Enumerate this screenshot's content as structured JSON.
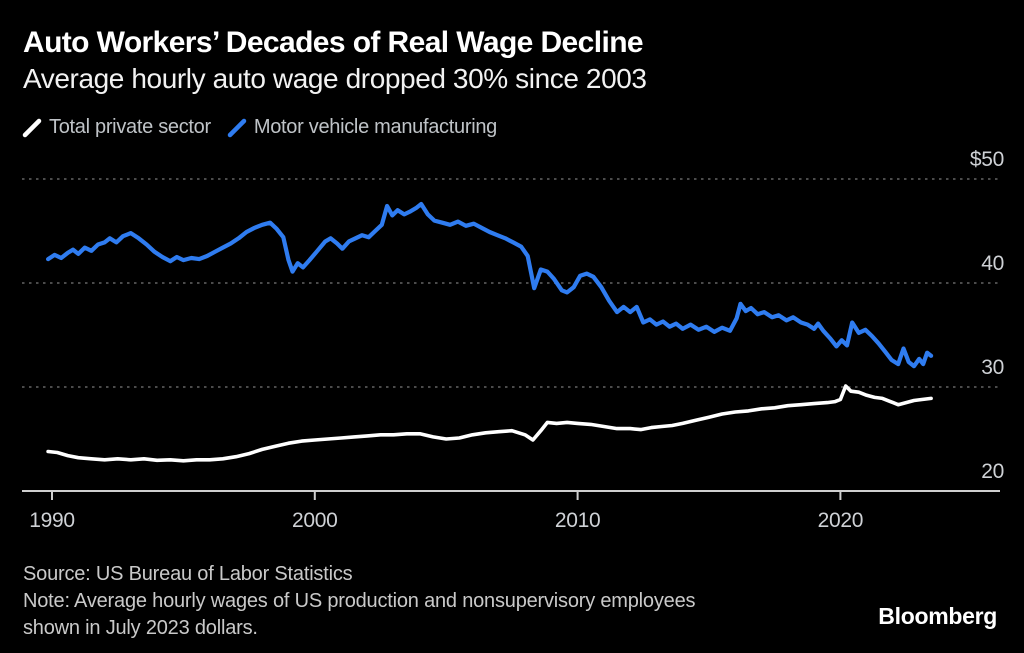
{
  "header": {
    "title": "Auto Workers’ Decades of Real Wage Decline",
    "subtitle": "Average hourly auto wage dropped 30% since 2003"
  },
  "legend": {
    "items": [
      {
        "label": "Total private sector",
        "color": "#ffffff"
      },
      {
        "label": "Motor vehicle manufacturing",
        "color": "#2f7cf0"
      }
    ]
  },
  "footer": {
    "source_line": "Source: US Bureau of Labor Statistics",
    "note_line1": "Note: Average hourly wages of US production and nonsupervisory employees",
    "note_line2": "shown in July 2023 dollars.",
    "logo": "Bloomberg"
  },
  "colors": {
    "background": "#000000",
    "grid": "#646464",
    "axis": "#cfcfcf",
    "axis_text": "#ced1d5",
    "series_white": "#ffffff",
    "series_blue": "#2f7cf0"
  },
  "chart_data": {
    "type": "line",
    "title": "Auto Workers’ Decades of Real Wage Decline",
    "subtitle": "Average hourly auto wage dropped 30% since 2003",
    "unit": "US dollars per hour, July 2023 dollars",
    "grid": "horizontal dotted",
    "legend_position": "top-left",
    "x_domain": [
      1988.9,
      2026.1
    ],
    "y_domain": [
      20,
      50
    ],
    "x_ticks": [
      {
        "label": "1990",
        "year": 1990
      },
      {
        "label": "2000",
        "year": 2000
      },
      {
        "label": "2010",
        "year": 2010
      },
      {
        "label": "2020",
        "year": 2020
      }
    ],
    "y_ticks": [
      {
        "label": "$50",
        "value": 50,
        "axis": false
      },
      {
        "label": "40",
        "value": 40,
        "axis": false
      },
      {
        "label": "30",
        "value": 30,
        "axis": false
      },
      {
        "label": "20",
        "value": 20,
        "axis": true
      }
    ],
    "series": [
      {
        "name": "Total private sector",
        "color": "#ffffff",
        "points": [
          [
            1989.85,
            23.8
          ],
          [
            1990.2,
            23.7
          ],
          [
            1990.6,
            23.4
          ],
          [
            1991.0,
            23.2
          ],
          [
            1991.5,
            23.1
          ],
          [
            1992.0,
            23.0
          ],
          [
            1992.5,
            23.1
          ],
          [
            1993.0,
            23.0
          ],
          [
            1993.5,
            23.1
          ],
          [
            1994.0,
            22.95
          ],
          [
            1994.5,
            23.0
          ],
          [
            1995.0,
            22.9
          ],
          [
            1995.5,
            23.0
          ],
          [
            1996.0,
            23.0
          ],
          [
            1996.5,
            23.1
          ],
          [
            1997.0,
            23.3
          ],
          [
            1997.5,
            23.6
          ],
          [
            1998.0,
            24.0
          ],
          [
            1998.5,
            24.3
          ],
          [
            1999.0,
            24.6
          ],
          [
            1999.5,
            24.8
          ],
          [
            2000.0,
            24.9
          ],
          [
            2000.5,
            25.0
          ],
          [
            2001.0,
            25.1
          ],
          [
            2001.5,
            25.2
          ],
          [
            2002.0,
            25.3
          ],
          [
            2002.5,
            25.4
          ],
          [
            2003.0,
            25.4
          ],
          [
            2003.5,
            25.5
          ],
          [
            2004.0,
            25.5
          ],
          [
            2004.5,
            25.2
          ],
          [
            2005.0,
            25.0
          ],
          [
            2005.5,
            25.1
          ],
          [
            2006.0,
            25.4
          ],
          [
            2006.5,
            25.6
          ],
          [
            2007.0,
            25.7
          ],
          [
            2007.5,
            25.8
          ],
          [
            2008.0,
            25.4
          ],
          [
            2008.3,
            24.9
          ],
          [
            2008.6,
            25.8
          ],
          [
            2008.85,
            26.6
          ],
          [
            2009.2,
            26.5
          ],
          [
            2009.6,
            26.6
          ],
          [
            2010.0,
            26.5
          ],
          [
            2010.5,
            26.4
          ],
          [
            2011.0,
            26.2
          ],
          [
            2011.5,
            26.0
          ],
          [
            2012.0,
            26.0
          ],
          [
            2012.4,
            25.9
          ],
          [
            2012.8,
            26.1
          ],
          [
            2013.2,
            26.2
          ],
          [
            2013.6,
            26.3
          ],
          [
            2014.0,
            26.5
          ],
          [
            2014.5,
            26.8
          ],
          [
            2015.0,
            27.1
          ],
          [
            2015.5,
            27.4
          ],
          [
            2016.0,
            27.6
          ],
          [
            2016.5,
            27.7
          ],
          [
            2017.0,
            27.9
          ],
          [
            2017.5,
            28.0
          ],
          [
            2018.0,
            28.2
          ],
          [
            2018.5,
            28.3
          ],
          [
            2019.0,
            28.4
          ],
          [
            2019.5,
            28.5
          ],
          [
            2019.8,
            28.6
          ],
          [
            2020.0,
            28.8
          ],
          [
            2020.2,
            30.1
          ],
          [
            2020.4,
            29.6
          ],
          [
            2020.7,
            29.5
          ],
          [
            2021.0,
            29.2
          ],
          [
            2021.3,
            29.0
          ],
          [
            2021.6,
            28.9
          ],
          [
            2022.0,
            28.5
          ],
          [
            2022.2,
            28.3
          ],
          [
            2022.5,
            28.5
          ],
          [
            2022.8,
            28.7
          ],
          [
            2023.1,
            28.8
          ],
          [
            2023.45,
            28.9
          ]
        ]
      },
      {
        "name": "Motor vehicle manufacturing",
        "color": "#2f7cf0",
        "points": [
          [
            1989.85,
            42.3
          ],
          [
            1990.1,
            42.7
          ],
          [
            1990.35,
            42.4
          ],
          [
            1990.6,
            42.9
          ],
          [
            1990.8,
            43.2
          ],
          [
            1991.0,
            42.8
          ],
          [
            1991.25,
            43.4
          ],
          [
            1991.5,
            43.1
          ],
          [
            1991.75,
            43.7
          ],
          [
            1992.0,
            43.9
          ],
          [
            1992.2,
            44.3
          ],
          [
            1992.45,
            43.9
          ],
          [
            1992.7,
            44.5
          ],
          [
            1993.0,
            44.8
          ],
          [
            1993.3,
            44.3
          ],
          [
            1993.6,
            43.7
          ],
          [
            1993.9,
            43.0
          ],
          [
            1994.2,
            42.5
          ],
          [
            1994.5,
            42.1
          ],
          [
            1994.75,
            42.5
          ],
          [
            1995.0,
            42.2
          ],
          [
            1995.3,
            42.4
          ],
          [
            1995.6,
            42.3
          ],
          [
            1995.9,
            42.6
          ],
          [
            1996.2,
            43.0
          ],
          [
            1996.5,
            43.4
          ],
          [
            1996.8,
            43.8
          ],
          [
            1997.1,
            44.3
          ],
          [
            1997.4,
            44.9
          ],
          [
            1997.7,
            45.3
          ],
          [
            1998.0,
            45.6
          ],
          [
            1998.3,
            45.8
          ],
          [
            1998.55,
            45.2
          ],
          [
            1998.8,
            44.4
          ],
          [
            1999.0,
            42.2
          ],
          [
            1999.15,
            41.1
          ],
          [
            1999.35,
            41.9
          ],
          [
            1999.55,
            41.5
          ],
          [
            1999.8,
            42.2
          ],
          [
            2000.1,
            43.1
          ],
          [
            2000.4,
            44.0
          ],
          [
            2000.6,
            44.3
          ],
          [
            2000.85,
            43.8
          ],
          [
            2001.05,
            43.3
          ],
          [
            2001.3,
            44.0
          ],
          [
            2001.55,
            44.3
          ],
          [
            2001.8,
            44.6
          ],
          [
            2002.05,
            44.4
          ],
          [
            2002.3,
            45.0
          ],
          [
            2002.55,
            45.6
          ],
          [
            2002.75,
            47.4
          ],
          [
            2002.95,
            46.5
          ],
          [
            2003.15,
            47.0
          ],
          [
            2003.4,
            46.6
          ],
          [
            2003.65,
            46.9
          ],
          [
            2003.85,
            47.2
          ],
          [
            2004.05,
            47.6
          ],
          [
            2004.3,
            46.6
          ],
          [
            2004.55,
            46.0
          ],
          [
            2004.85,
            45.8
          ],
          [
            2005.15,
            45.6
          ],
          [
            2005.45,
            45.9
          ],
          [
            2005.75,
            45.5
          ],
          [
            2006.05,
            45.7
          ],
          [
            2006.35,
            45.3
          ],
          [
            2006.65,
            44.9
          ],
          [
            2006.95,
            44.6
          ],
          [
            2007.25,
            44.3
          ],
          [
            2007.55,
            43.9
          ],
          [
            2007.85,
            43.5
          ],
          [
            2008.1,
            42.6
          ],
          [
            2008.35,
            39.5
          ],
          [
            2008.6,
            41.3
          ],
          [
            2008.85,
            41.1
          ],
          [
            2009.1,
            40.4
          ],
          [
            2009.4,
            39.3
          ],
          [
            2009.6,
            39.1
          ],
          [
            2009.85,
            39.6
          ],
          [
            2010.1,
            40.7
          ],
          [
            2010.35,
            40.9
          ],
          [
            2010.6,
            40.6
          ],
          [
            2010.9,
            39.6
          ],
          [
            2011.2,
            38.3
          ],
          [
            2011.5,
            37.2
          ],
          [
            2011.75,
            37.7
          ],
          [
            2012.0,
            37.2
          ],
          [
            2012.25,
            37.7
          ],
          [
            2012.5,
            36.2
          ],
          [
            2012.75,
            36.5
          ],
          [
            2013.0,
            36.0
          ],
          [
            2013.25,
            36.3
          ],
          [
            2013.5,
            35.8
          ],
          [
            2013.75,
            36.1
          ],
          [
            2014.0,
            35.6
          ],
          [
            2014.3,
            36.0
          ],
          [
            2014.6,
            35.5
          ],
          [
            2014.9,
            35.8
          ],
          [
            2015.2,
            35.3
          ],
          [
            2015.5,
            35.7
          ],
          [
            2015.8,
            35.4
          ],
          [
            2016.05,
            36.6
          ],
          [
            2016.2,
            38.0
          ],
          [
            2016.4,
            37.3
          ],
          [
            2016.6,
            37.6
          ],
          [
            2016.85,
            37.0
          ],
          [
            2017.1,
            37.2
          ],
          [
            2017.4,
            36.7
          ],
          [
            2017.65,
            36.9
          ],
          [
            2017.95,
            36.4
          ],
          [
            2018.2,
            36.7
          ],
          [
            2018.5,
            36.2
          ],
          [
            2018.75,
            36.0
          ],
          [
            2019.0,
            35.6
          ],
          [
            2019.15,
            36.1
          ],
          [
            2019.35,
            35.4
          ],
          [
            2019.6,
            34.7
          ],
          [
            2019.85,
            33.9
          ],
          [
            2020.05,
            34.5
          ],
          [
            2020.25,
            34.0
          ],
          [
            2020.45,
            36.2
          ],
          [
            2020.7,
            35.2
          ],
          [
            2020.95,
            35.5
          ],
          [
            2021.2,
            34.9
          ],
          [
            2021.45,
            34.2
          ],
          [
            2021.7,
            33.4
          ],
          [
            2021.95,
            32.6
          ],
          [
            2022.2,
            32.2
          ],
          [
            2022.4,
            33.7
          ],
          [
            2022.6,
            32.4
          ],
          [
            2022.8,
            32.0
          ],
          [
            2023.0,
            32.7
          ],
          [
            2023.15,
            32.2
          ],
          [
            2023.3,
            33.3
          ],
          [
            2023.45,
            33.0
          ]
        ]
      }
    ]
  }
}
